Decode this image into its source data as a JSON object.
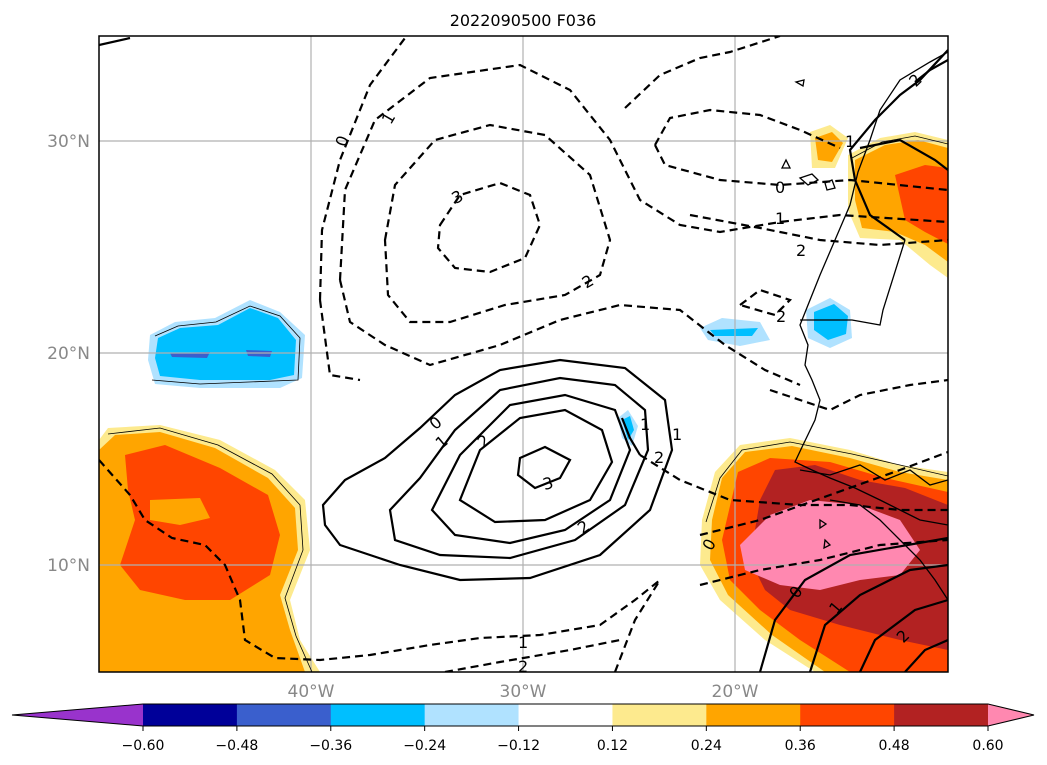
{
  "title": "2022090500 F036",
  "lat_labels": [
    "30°N",
    "20°N",
    "10°N"
  ],
  "lon_labels": [
    "40°W",
    "30°W",
    "20°W"
  ],
  "colorbar": {
    "ticks": [
      "−0.60",
      "−0.48",
      "−0.36",
      "−0.24",
      "−0.12",
      "0.12",
      "0.24",
      "0.36",
      "0.48",
      "0.60"
    ],
    "colors": [
      "#9933cc",
      "#000099",
      "#3a5fcd",
      "#00bfff",
      "#b0e2ff",
      "#ffffff",
      "#fdea8e",
      "#ffa500",
      "#ff4500",
      "#b22222",
      "#ff88b0"
    ]
  },
  "contour_labels": [
    "0",
    "1",
    "3",
    "2",
    "1",
    "0",
    "2",
    "1",
    "2",
    "2",
    "0",
    "1",
    "2",
    "3",
    "2",
    "1",
    "2",
    "0",
    "1",
    "2",
    "0",
    "1",
    "2",
    "1"
  ]
}
